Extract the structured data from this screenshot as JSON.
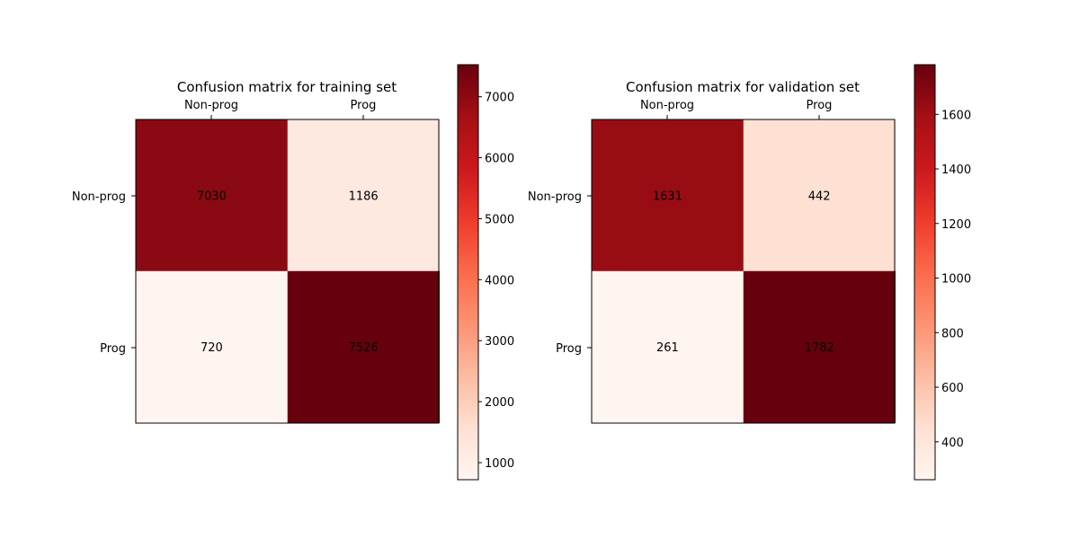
{
  "chart_data": [
    {
      "type": "heatmap",
      "title": "Confusion matrix for training set",
      "row_labels": [
        "Non-prog",
        "Prog"
      ],
      "col_labels": [
        "Non-prog",
        "Prog"
      ],
      "values": [
        [
          7030,
          1186
        ],
        [
          720,
          7526
        ]
      ],
      "colormap": "Reds",
      "colorbar": {
        "min": 720,
        "max": 7526,
        "ticks": [
          1000,
          2000,
          3000,
          4000,
          5000,
          6000,
          7000
        ]
      }
    },
    {
      "type": "heatmap",
      "title": "Confusion matrix for validation set",
      "row_labels": [
        "Non-prog",
        "Prog"
      ],
      "col_labels": [
        "Non-prog",
        "Prog"
      ],
      "values": [
        [
          1631,
          442
        ],
        [
          261,
          1782
        ]
      ],
      "colormap": "Reds",
      "colorbar": {
        "min": 261,
        "max": 1782,
        "ticks": [
          400,
          600,
          800,
          1000,
          1200,
          1400,
          1600
        ]
      }
    }
  ],
  "colors": {
    "reds_colormap": [
      "#fff5f0",
      "#fee0d2",
      "#fcbba1",
      "#fc9272",
      "#fb6a4a",
      "#ef3b2c",
      "#cb181d",
      "#a50f15",
      "#67000d"
    ],
    "light_text": "#000000",
    "dark_text": "#000000"
  }
}
